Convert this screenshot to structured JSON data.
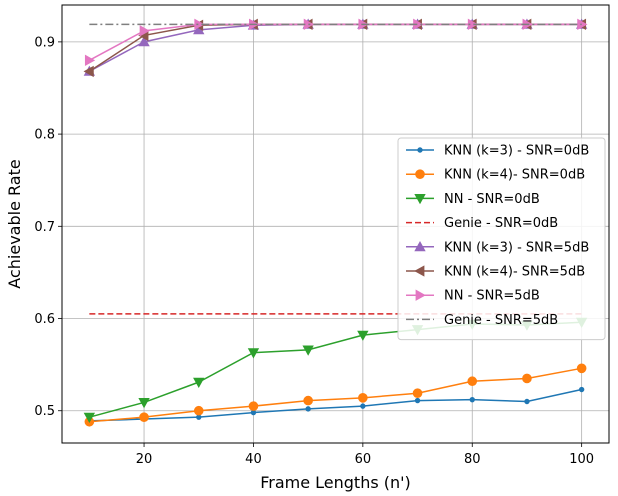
{
  "chart_data": {
    "type": "line",
    "xlabel": "Frame Lengths (n')",
    "ylabel": "Achievable Rate",
    "xlim": [
      5,
      105
    ],
    "ylim": [
      0.465,
      0.94
    ],
    "xticks": [
      20,
      40,
      60,
      80,
      100
    ],
    "yticks": [
      0.5,
      0.6,
      0.7,
      0.8,
      0.9
    ],
    "grid": true,
    "legend_position": "center-right",
    "x": [
      10,
      20,
      30,
      40,
      50,
      60,
      70,
      80,
      90,
      100
    ],
    "series": [
      {
        "name": "KNN (k=3) - SNR=0dB",
        "color": "#1f77b4",
        "marker": "circle-small",
        "linestyle": "solid",
        "values": [
          0.489,
          0.491,
          0.493,
          0.498,
          0.502,
          0.505,
          0.511,
          0.512,
          0.51,
          0.523
        ]
      },
      {
        "name": "KNN (k=4)- SNR=0dB",
        "color": "#ff7f0e",
        "marker": "circle",
        "linestyle": "solid",
        "values": [
          0.488,
          0.493,
          0.5,
          0.505,
          0.511,
          0.514,
          0.519,
          0.532,
          0.535,
          0.546
        ]
      },
      {
        "name": "NN - SNR=0dB",
        "color": "#2ca02c",
        "marker": "triangle-down",
        "linestyle": "solid",
        "values": [
          0.493,
          0.509,
          0.531,
          0.563,
          0.566,
          0.582,
          0.588,
          0.594,
          0.593,
          0.596
        ]
      },
      {
        "name": "Genie - SNR=0dB",
        "color": "#d62728",
        "marker": "none",
        "linestyle": "dashed",
        "values": [
          0.605,
          0.605,
          0.605,
          0.605,
          0.605,
          0.605,
          0.605,
          0.605,
          0.605,
          0.605
        ]
      },
      {
        "name": "KNN (k=3) - SNR=5dB",
        "color": "#9467bd",
        "marker": "triangle-up",
        "linestyle": "solid",
        "values": [
          0.868,
          0.9,
          0.913,
          0.918,
          0.919,
          0.919,
          0.919,
          0.919,
          0.919,
          0.919
        ]
      },
      {
        "name": "KNN (k=4)- SNR=5dB",
        "color": "#8c564b",
        "marker": "triangle-left",
        "linestyle": "solid",
        "values": [
          0.868,
          0.907,
          0.918,
          0.919,
          0.919,
          0.919,
          0.919,
          0.919,
          0.919,
          0.919
        ]
      },
      {
        "name": "NN - SNR=5dB",
        "color": "#e377c2",
        "marker": "triangle-right",
        "linestyle": "solid",
        "values": [
          0.88,
          0.912,
          0.919,
          0.919,
          0.919,
          0.919,
          0.919,
          0.919,
          0.919,
          0.919
        ]
      },
      {
        "name": "Genie - SNR=5dB",
        "color": "#7f7f7f",
        "marker": "none",
        "linestyle": "dashdot",
        "values": [
          0.919,
          0.919,
          0.919,
          0.919,
          0.919,
          0.919,
          0.919,
          0.919,
          0.919,
          0.919
        ]
      }
    ]
  }
}
